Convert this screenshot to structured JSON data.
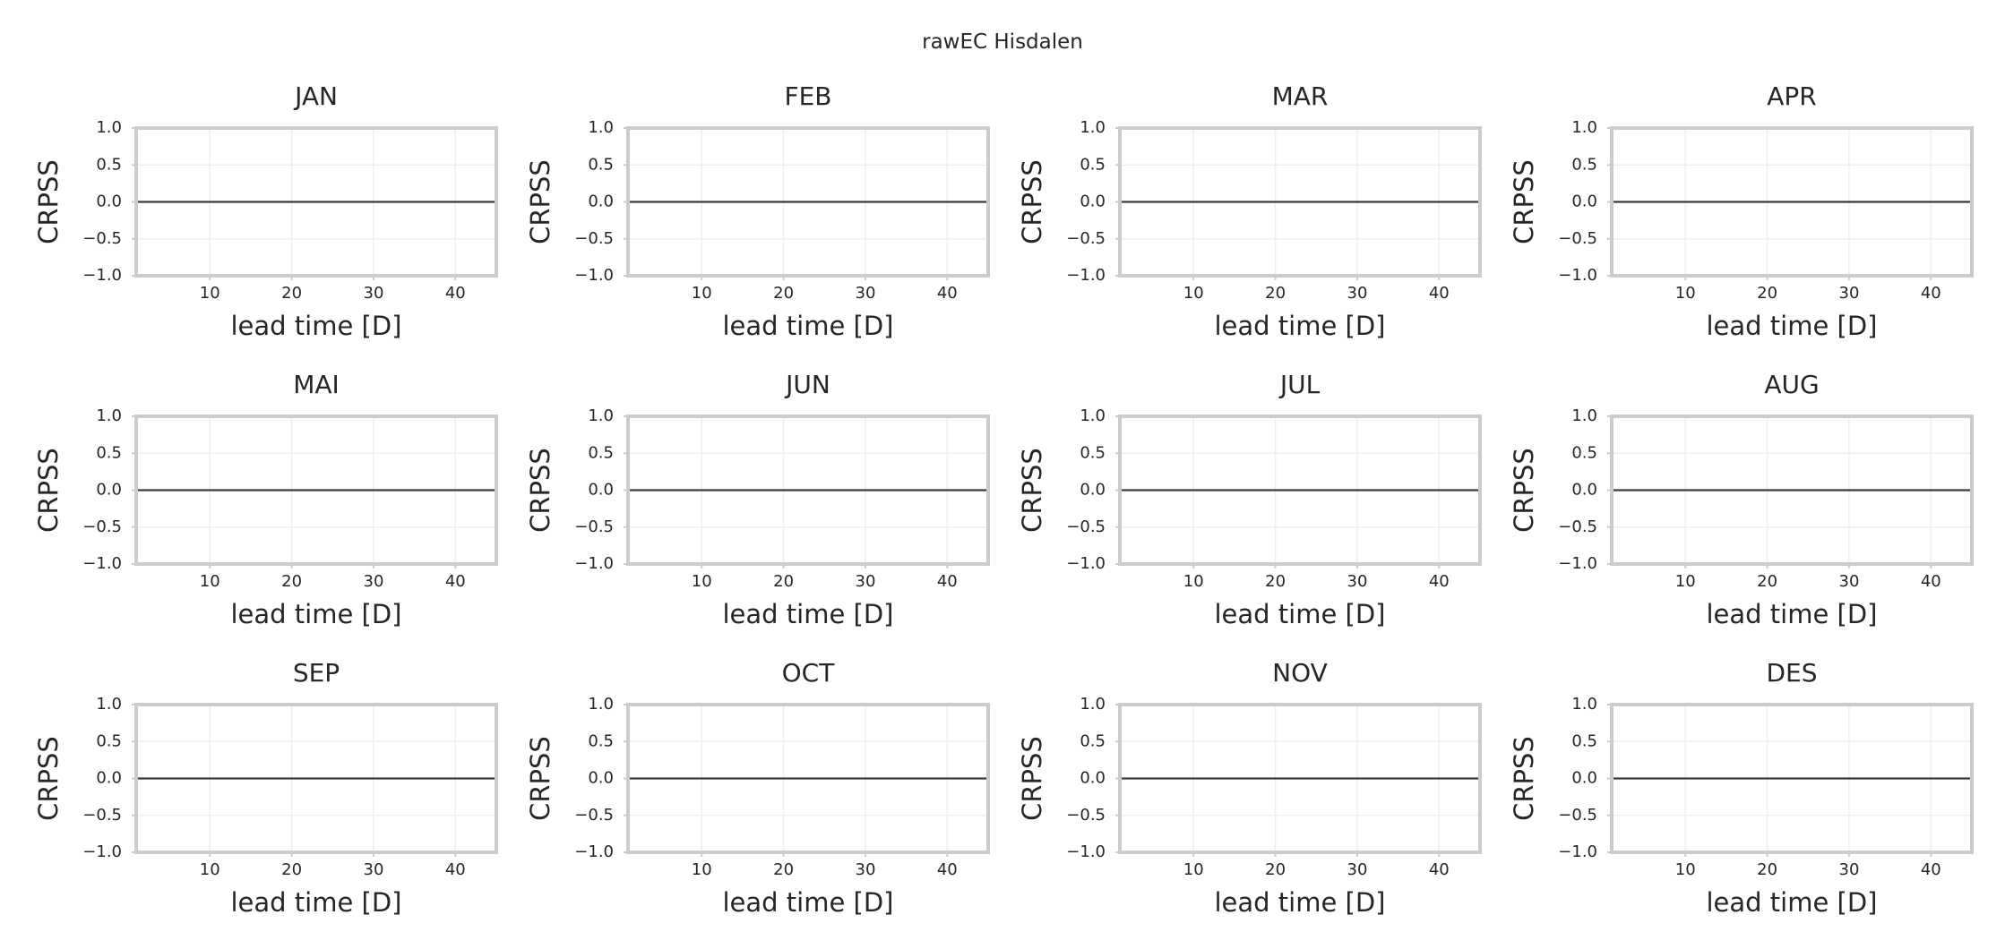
{
  "suptitle": "rawEC Hisdalen",
  "chart_data": [
    {
      "type": "line",
      "title": "JAN",
      "xlabel": "lead time [D]",
      "ylabel": "CRPSS",
      "xlim": [
        1,
        45
      ],
      "ylim": [
        -1.0,
        1.0
      ],
      "xticks": [
        10,
        20,
        30,
        40
      ],
      "yticks": [
        -1.0,
        -0.5,
        0.0,
        0.5,
        1.0
      ],
      "yticklabels": [
        "−1.0",
        "−0.5",
        "0.0",
        "0.5",
        "1.0"
      ],
      "grid": true,
      "series": [
        {
          "x": [
            1,
            45
          ],
          "y": [
            0.0,
            0.0
          ]
        }
      ]
    },
    {
      "type": "line",
      "title": "FEB",
      "xlabel": "lead time [D]",
      "ylabel": "CRPSS",
      "xlim": [
        1,
        45
      ],
      "ylim": [
        -1.0,
        1.0
      ],
      "xticks": [
        10,
        20,
        30,
        40
      ],
      "yticks": [
        -1.0,
        -0.5,
        0.0,
        0.5,
        1.0
      ],
      "yticklabels": [
        "−1.0",
        "−0.5",
        "0.0",
        "0.5",
        "1.0"
      ],
      "grid": true,
      "series": [
        {
          "x": [
            1,
            45
          ],
          "y": [
            0.0,
            0.0
          ]
        }
      ]
    },
    {
      "type": "line",
      "title": "MAR",
      "xlabel": "lead time [D]",
      "ylabel": "CRPSS",
      "xlim": [
        1,
        45
      ],
      "ylim": [
        -1.0,
        1.0
      ],
      "xticks": [
        10,
        20,
        30,
        40
      ],
      "yticks": [
        -1.0,
        -0.5,
        0.0,
        0.5,
        1.0
      ],
      "yticklabels": [
        "−1.0",
        "−0.5",
        "0.0",
        "0.5",
        "1.0"
      ],
      "grid": true,
      "series": [
        {
          "x": [
            1,
            45
          ],
          "y": [
            0.0,
            0.0
          ]
        }
      ]
    },
    {
      "type": "line",
      "title": "APR",
      "xlabel": "lead time [D]",
      "ylabel": "CRPSS",
      "xlim": [
        1,
        45
      ],
      "ylim": [
        -1.0,
        1.0
      ],
      "xticks": [
        10,
        20,
        30,
        40
      ],
      "yticks": [
        -1.0,
        -0.5,
        0.0,
        0.5,
        1.0
      ],
      "yticklabels": [
        "−1.0",
        "−0.5",
        "0.0",
        "0.5",
        "1.0"
      ],
      "grid": true,
      "series": [
        {
          "x": [
            1,
            45
          ],
          "y": [
            0.0,
            0.0
          ]
        }
      ]
    },
    {
      "type": "line",
      "title": "MAI",
      "xlabel": "lead time [D]",
      "ylabel": "CRPSS",
      "xlim": [
        1,
        45
      ],
      "ylim": [
        -1.0,
        1.0
      ],
      "xticks": [
        10,
        20,
        30,
        40
      ],
      "yticks": [
        -1.0,
        -0.5,
        0.0,
        0.5,
        1.0
      ],
      "yticklabels": [
        "−1.0",
        "−0.5",
        "0.0",
        "0.5",
        "1.0"
      ],
      "grid": true,
      "series": [
        {
          "x": [
            1,
            45
          ],
          "y": [
            0.0,
            0.0
          ]
        }
      ]
    },
    {
      "type": "line",
      "title": "JUN",
      "xlabel": "lead time [D]",
      "ylabel": "CRPSS",
      "xlim": [
        1,
        45
      ],
      "ylim": [
        -1.0,
        1.0
      ],
      "xticks": [
        10,
        20,
        30,
        40
      ],
      "yticks": [
        -1.0,
        -0.5,
        0.0,
        0.5,
        1.0
      ],
      "yticklabels": [
        "−1.0",
        "−0.5",
        "0.0",
        "0.5",
        "1.0"
      ],
      "grid": true,
      "series": [
        {
          "x": [
            1,
            45
          ],
          "y": [
            0.0,
            0.0
          ]
        }
      ]
    },
    {
      "type": "line",
      "title": "JUL",
      "xlabel": "lead time [D]",
      "ylabel": "CRPSS",
      "xlim": [
        1,
        45
      ],
      "ylim": [
        -1.0,
        1.0
      ],
      "xticks": [
        10,
        20,
        30,
        40
      ],
      "yticks": [
        -1.0,
        -0.5,
        0.0,
        0.5,
        1.0
      ],
      "yticklabels": [
        "−1.0",
        "−0.5",
        "0.0",
        "0.5",
        "1.0"
      ],
      "grid": true,
      "series": [
        {
          "x": [
            1,
            45
          ],
          "y": [
            0.0,
            0.0
          ]
        }
      ]
    },
    {
      "type": "line",
      "title": "AUG",
      "xlabel": "lead time [D]",
      "ylabel": "CRPSS",
      "xlim": [
        1,
        45
      ],
      "ylim": [
        -1.0,
        1.0
      ],
      "xticks": [
        10,
        20,
        30,
        40
      ],
      "yticks": [
        -1.0,
        -0.5,
        0.0,
        0.5,
        1.0
      ],
      "yticklabels": [
        "−1.0",
        "−0.5",
        "0.0",
        "0.5",
        "1.0"
      ],
      "grid": true,
      "series": [
        {
          "x": [
            1,
            45
          ],
          "y": [
            0.0,
            0.0
          ]
        }
      ]
    },
    {
      "type": "line",
      "title": "SEP",
      "xlabel": "lead time [D]",
      "ylabel": "CRPSS",
      "xlim": [
        1,
        45
      ],
      "ylim": [
        -1.0,
        1.0
      ],
      "xticks": [
        10,
        20,
        30,
        40
      ],
      "yticks": [
        -1.0,
        -0.5,
        0.0,
        0.5,
        1.0
      ],
      "yticklabels": [
        "−1.0",
        "−0.5",
        "0.0",
        "0.5",
        "1.0"
      ],
      "grid": true,
      "series": [
        {
          "x": [
            1,
            45
          ],
          "y": [
            0.0,
            0.0
          ]
        }
      ]
    },
    {
      "type": "line",
      "title": "OCT",
      "xlabel": "lead time [D]",
      "ylabel": "CRPSS",
      "xlim": [
        1,
        45
      ],
      "ylim": [
        -1.0,
        1.0
      ],
      "xticks": [
        10,
        20,
        30,
        40
      ],
      "yticks": [
        -1.0,
        -0.5,
        0.0,
        0.5,
        1.0
      ],
      "yticklabels": [
        "−1.0",
        "−0.5",
        "0.0",
        "0.5",
        "1.0"
      ],
      "grid": true,
      "series": [
        {
          "x": [
            1,
            45
          ],
          "y": [
            0.0,
            0.0
          ]
        }
      ]
    },
    {
      "type": "line",
      "title": "NOV",
      "xlabel": "lead time [D]",
      "ylabel": "CRPSS",
      "xlim": [
        1,
        45
      ],
      "ylim": [
        -1.0,
        1.0
      ],
      "xticks": [
        10,
        20,
        30,
        40
      ],
      "yticks": [
        -1.0,
        -0.5,
        0.0,
        0.5,
        1.0
      ],
      "yticklabels": [
        "−1.0",
        "−0.5",
        "0.0",
        "0.5",
        "1.0"
      ],
      "grid": true,
      "series": [
        {
          "x": [
            1,
            45
          ],
          "y": [
            0.0,
            0.0
          ]
        }
      ]
    },
    {
      "type": "line",
      "title": "DES",
      "xlabel": "lead time [D]",
      "ylabel": "CRPSS",
      "xlim": [
        1,
        45
      ],
      "ylim": [
        -1.0,
        1.0
      ],
      "xticks": [
        10,
        20,
        30,
        40
      ],
      "yticks": [
        -1.0,
        -0.5,
        0.0,
        0.5,
        1.0
      ],
      "yticklabels": [
        "−1.0",
        "−0.5",
        "0.0",
        "0.5",
        "1.0"
      ],
      "grid": true,
      "series": [
        {
          "x": [
            1,
            45
          ],
          "y": [
            0.0,
            0.0
          ]
        }
      ]
    }
  ]
}
